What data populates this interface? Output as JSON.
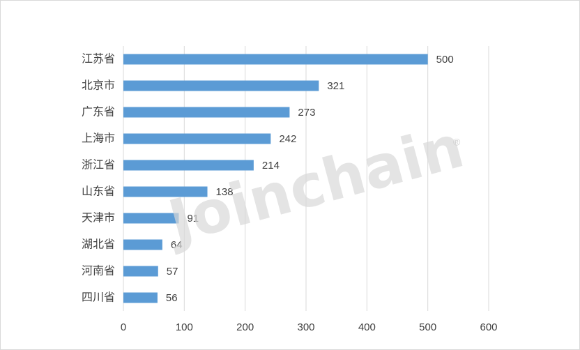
{
  "chart_data": {
    "type": "bar",
    "orientation": "horizontal",
    "categories": [
      "江苏省",
      "北京市",
      "广东省",
      "上海市",
      "浙江省",
      "山东省",
      "天津市",
      "湖北省",
      "河南省",
      "四川省"
    ],
    "values": [
      500,
      321,
      273,
      242,
      214,
      138,
      91,
      64,
      57,
      56
    ],
    "color": "#5b9bd5",
    "xlim": [
      0,
      600
    ],
    "xticks": [
      0,
      100,
      200,
      300,
      400,
      500,
      600
    ],
    "grid": true,
    "watermark": "Joinchain",
    "watermark_symbol": "®"
  }
}
